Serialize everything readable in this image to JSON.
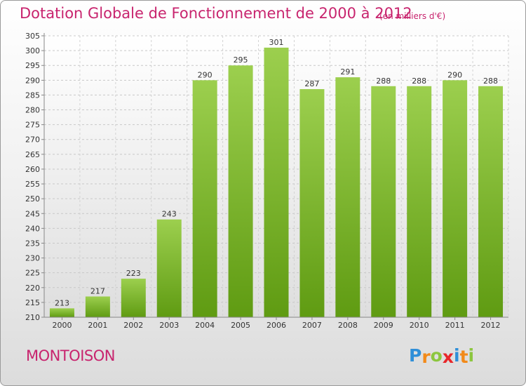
{
  "header": {
    "title": "Dotation Globale de Fonctionnement de 2000 à 2012",
    "unit": "(en milliers d'€)"
  },
  "footer": {
    "commune": "MONTOISON",
    "logo_letters": [
      "P",
      "r",
      "o",
      "x",
      "i",
      "t",
      "i"
    ],
    "logo_colors": [
      "#2f8fd8",
      "#f28a1a",
      "#8cc63f",
      "#e8262a",
      "#2f8fd8",
      "#f28a1a",
      "#8cc63f"
    ]
  },
  "colors": {
    "title": "#c8246e",
    "bar_light": "#9ccf4e",
    "bar_dark": "#5f9b12",
    "grid": "#c8c8c8"
  },
  "chart_data": {
    "type": "bar",
    "title": "Dotation Globale de Fonctionnement de 2000 à 2012",
    "subtitle": "(en milliers d'€)",
    "categories": [
      "2000",
      "2001",
      "2002",
      "2003",
      "2004",
      "2005",
      "2006",
      "2007",
      "2008",
      "2009",
      "2010",
      "2011",
      "2012"
    ],
    "values": [
      213,
      217,
      223,
      243,
      290,
      295,
      301,
      287,
      291,
      288,
      288,
      290,
      288
    ],
    "ylim": [
      210,
      305
    ],
    "ytick_step": 5,
    "grid": true,
    "legend": "none"
  }
}
